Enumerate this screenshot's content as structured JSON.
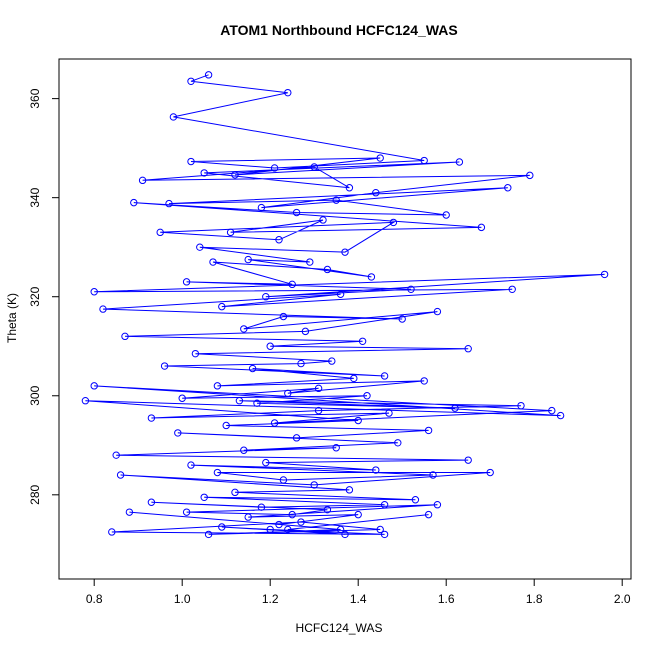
{
  "chart_data": {
    "type": "line",
    "title": "ATOM1 Northbound HCFC124_WAS",
    "xlabel": "HCFC124_WAS",
    "ylabel": "Theta (K)",
    "xlim": [
      0.72,
      2.02
    ],
    "ylim": [
      263,
      368
    ],
    "x_ticks": [
      0.8,
      1.0,
      1.2,
      1.4,
      1.6,
      1.8,
      2.0
    ],
    "x_tick_labels": [
      "0.8",
      "1.0",
      "1.2",
      "1.4",
      "1.6",
      "1.8",
      "2.0"
    ],
    "y_ticks": [
      280,
      300,
      320,
      340,
      360
    ],
    "y_tick_labels": [
      "280",
      "300",
      "320",
      "340",
      "360"
    ],
    "grid": false,
    "series_color": "#0000ff",
    "marker": "open-circle",
    "series": [
      {
        "name": "",
        "x": [
          1.06,
          1.02,
          1.24,
          0.98,
          1.55,
          1.21,
          1.02,
          1.45,
          1.12,
          1.63,
          1.05,
          1.38,
          1.3,
          0.91,
          1.79,
          1.44,
          1.18,
          1.74,
          0.97,
          1.35,
          1.6,
          1.26,
          0.89,
          1.68,
          1.11,
          1.32,
          1.22,
          0.95,
          1.48,
          1.37,
          1.04,
          1.29,
          1.15,
          1.43,
          1.33,
          1.07,
          1.25,
          1.01,
          1.52,
          1.19,
          1.96,
          0.8,
          1.75,
          1.09,
          1.36,
          0.82,
          1.5,
          1.23,
          1.14,
          1.58,
          1.28,
          0.87,
          1.41,
          1.2,
          1.65,
          1.03,
          1.34,
          1.27,
          0.96,
          1.46,
          1.16,
          1.39,
          1.08,
          1.55,
          1.24,
          1.31,
          1.0,
          1.42,
          1.17,
          1.62,
          1.13,
          1.77,
          1.31,
          0.93,
          1.47,
          1.21,
          1.84,
          0.8,
          1.86,
          0.78,
          1.4,
          1.1,
          1.56,
          1.26,
          0.99,
          1.49,
          1.14,
          1.35,
          0.85,
          1.65,
          1.19,
          1.44,
          1.02,
          1.57,
          1.23,
          1.08,
          1.7,
          1.3,
          0.86,
          1.38,
          1.12,
          1.53,
          1.05,
          1.46,
          1.18,
          0.93,
          1.33,
          1.25,
          1.01,
          1.58,
          1.15,
          1.4,
          1.22,
          0.88,
          1.36,
          1.06,
          1.45,
          1.27,
          0.84,
          1.46,
          1.2,
          1.09,
          1.37,
          1.24,
          1.56
        ],
        "y": [
          364.8,
          363.5,
          361.2,
          356.3,
          347.5,
          346.0,
          347.3,
          348.0,
          344.6,
          347.2,
          345.0,
          342.0,
          346.2,
          343.5,
          344.5,
          341.0,
          338.0,
          342.0,
          338.8,
          339.5,
          336.5,
          337.0,
          339.0,
          334.0,
          333.0,
          335.5,
          331.5,
          333.0,
          335.0,
          329.0,
          330.0,
          327.0,
          327.5,
          324.0,
          325.5,
          327.0,
          322.5,
          323.0,
          321.5,
          320.0,
          324.5,
          321.0,
          321.5,
          318.0,
          320.5,
          317.5,
          315.5,
          316.0,
          313.5,
          317.0,
          313.0,
          312.0,
          311.0,
          310.0,
          309.5,
          308.5,
          307.0,
          306.5,
          306.0,
          304.0,
          305.5,
          303.5,
          302.0,
          303.0,
          300.5,
          301.5,
          299.5,
          300.0,
          298.5,
          297.5,
          299.0,
          298.0,
          297.0,
          295.5,
          296.5,
          294.5,
          297.0,
          302.0,
          296.0,
          299.0,
          295.0,
          294.0,
          293.0,
          291.5,
          292.5,
          290.5,
          289.0,
          289.5,
          288.0,
          287.0,
          286.5,
          285.0,
          286.0,
          284.0,
          283.0,
          284.5,
          284.5,
          282.0,
          284.0,
          281.0,
          280.5,
          279.0,
          279.5,
          278.0,
          277.5,
          278.5,
          277.0,
          276.0,
          276.5,
          278.0,
          275.5,
          276.0,
          274.0,
          276.5,
          273.0,
          272.0,
          273.0,
          274.5,
          272.5,
          272.0,
          273.0,
          273.5,
          272.0,
          273.0,
          276.0
        ]
      }
    ]
  }
}
